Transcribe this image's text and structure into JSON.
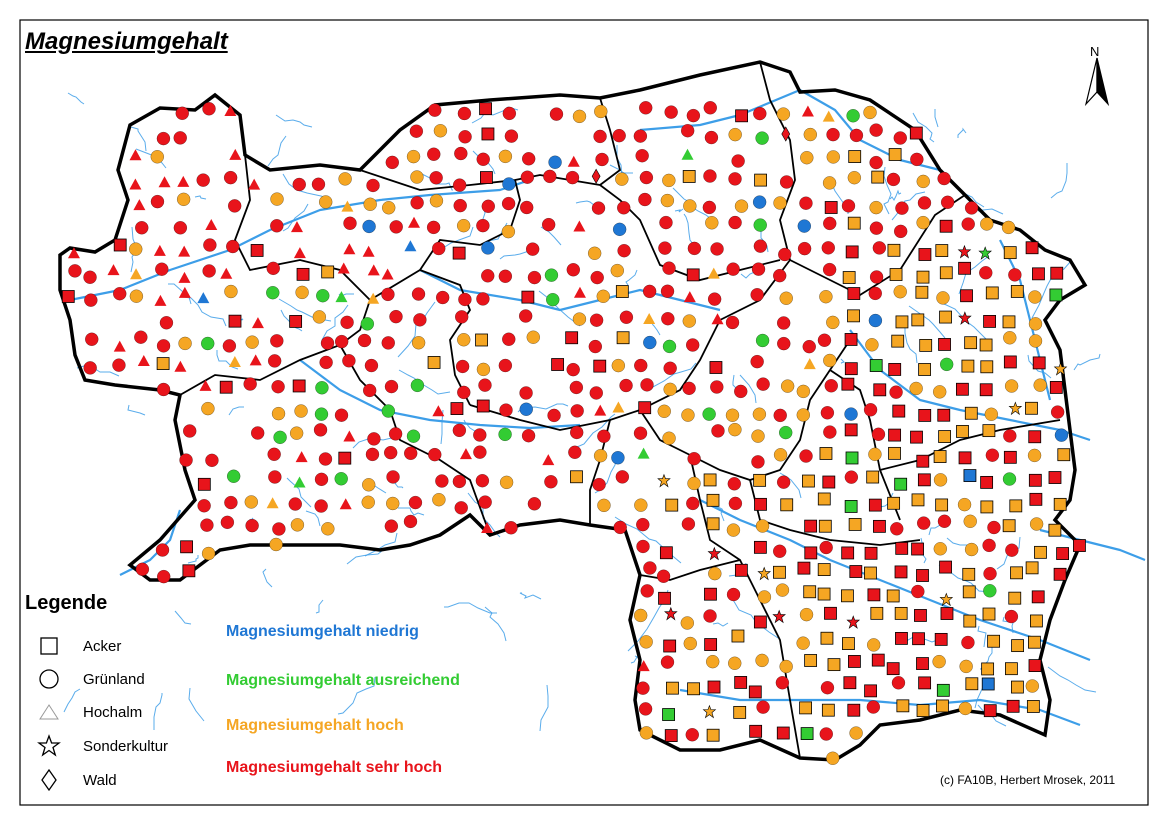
{
  "title": "Magnesiumgehalt",
  "north_label": "N",
  "legend": {
    "title": "Legende",
    "symbols": [
      {
        "label": "Acker",
        "icon": "square-icon"
      },
      {
        "label": "Grünland",
        "icon": "circle-icon"
      },
      {
        "label": "Hochalm",
        "icon": "triangle-icon"
      },
      {
        "label": "Sonderkultur",
        "icon": "star-icon"
      },
      {
        "label": "Wald",
        "icon": "diamond-icon"
      }
    ],
    "classes": [
      {
        "label": "Magnesiumgehalt niedrig",
        "color": "#1f77d4"
      },
      {
        "label": "Magnesiumgehalt ausreichend",
        "color": "#33cc33"
      },
      {
        "label": "Magnesiumgehalt hoch",
        "color": "#f5a623"
      },
      {
        "label": "Magnesiumgehalt sehr hoch",
        "color": "#e8141b"
      }
    ]
  },
  "credit": "(c) FA10B, Herbert Mrosek, 2011",
  "colors": {
    "river": "#3d9ee8",
    "boundary": "#000000",
    "niedrig": "#1f77d4",
    "ausreichend": "#33cc33",
    "hoch": "#f5a623",
    "sehr_hoch": "#e8141b"
  }
}
